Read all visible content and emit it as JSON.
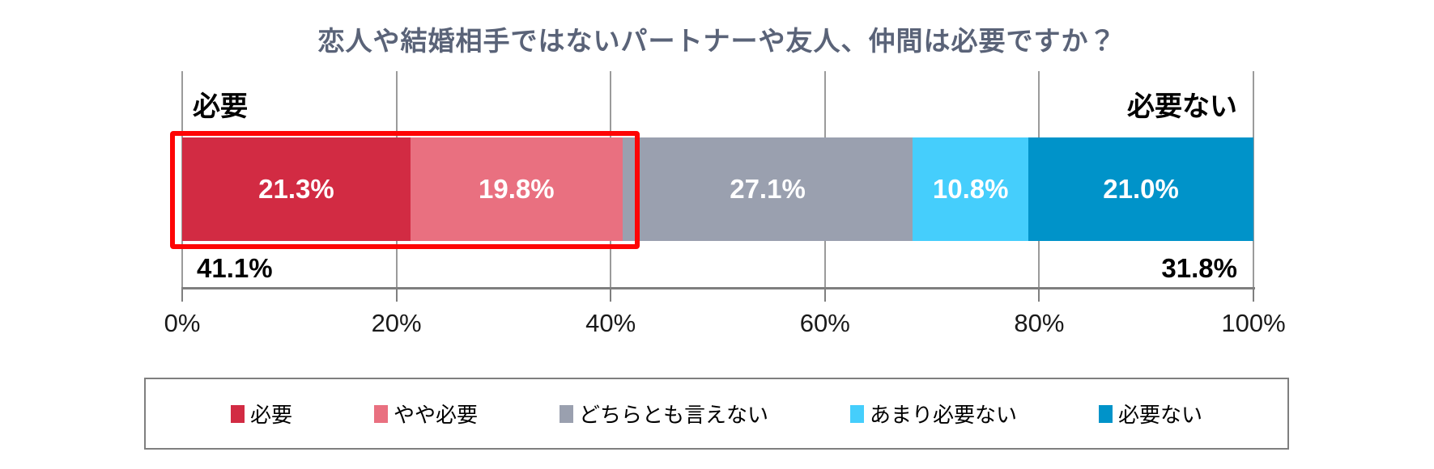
{
  "chart_data": {
    "type": "bar",
    "orientation": "horizontal-stacked",
    "title": "恋人や結婚相手ではないパートナーや友人、仲間は必要ですか？",
    "title_color": "#5a6378",
    "categories": [
      "必要",
      "やや必要",
      "どちらとも言えない",
      "あまり必要ない",
      "必要ない"
    ],
    "segments": [
      {
        "label": "必要",
        "value": 21.3,
        "display": "21.3%",
        "color": "#d22b43"
      },
      {
        "label": "やや必要",
        "value": 19.8,
        "display": "19.8%",
        "color": "#e97080"
      },
      {
        "label": "どちらとも言えない",
        "value": 27.1,
        "display": "27.1%",
        "color": "#9aa0af"
      },
      {
        "label": "あまり必要ない",
        "value": 10.8,
        "display": "10.8%",
        "color": "#45cefc"
      },
      {
        "label": "必要ない",
        "value": 21.0,
        "display": "21.0%",
        "color": "#0093c9"
      }
    ],
    "group_labels": {
      "left": {
        "label": "必要",
        "total_display": "41.1%",
        "total_value": 41.1
      },
      "right": {
        "label": "必要ない",
        "total_display": "31.8%",
        "total_value": 31.8
      }
    },
    "x_axis": {
      "ticks": [
        "0%",
        "20%",
        "40%",
        "60%",
        "80%",
        "100%"
      ],
      "tick_values": [
        0,
        20,
        40,
        60,
        80,
        100
      ],
      "range": [
        0,
        100
      ],
      "grid": true
    },
    "highlight": {
      "covers_segments": [
        0,
        1
      ],
      "covered_total": 41.1,
      "stroke_color": "#fe0505"
    },
    "legend": {
      "position": "bottom",
      "items": [
        "必要",
        "やや必要",
        "どちらとも言えない",
        "あまり必要ない",
        "必要ない"
      ]
    }
  }
}
